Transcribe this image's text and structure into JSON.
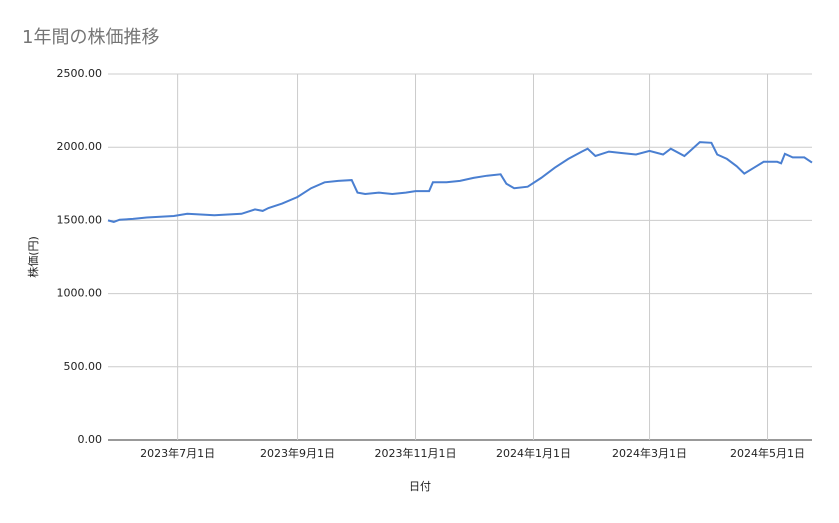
{
  "chart_data": {
    "type": "line",
    "title": "1年間の株価推移",
    "x_label": "日付",
    "y_label": "株価(円)",
    "x": [
      "2023-05-26",
      "2023-05-29",
      "2023-06-01",
      "2023-06-08",
      "2023-06-15",
      "2023-06-22",
      "2023-06-29",
      "2023-07-06",
      "2023-07-13",
      "2023-07-20",
      "2023-07-27",
      "2023-08-03",
      "2023-08-10",
      "2023-08-14",
      "2023-08-17",
      "2023-08-24",
      "2023-09-01",
      "2023-09-08",
      "2023-09-15",
      "2023-09-22",
      "2023-09-29",
      "2023-10-02",
      "2023-10-06",
      "2023-10-13",
      "2023-10-20",
      "2023-10-27",
      "2023-11-01",
      "2023-11-08",
      "2023-11-10",
      "2023-11-17",
      "2023-11-24",
      "2023-12-01",
      "2023-12-08",
      "2023-12-15",
      "2023-12-18",
      "2023-12-22",
      "2023-12-29",
      "2024-01-05",
      "2024-01-12",
      "2024-01-19",
      "2024-01-26",
      "2024-01-29",
      "2024-02-02",
      "2024-02-09",
      "2024-02-16",
      "2024-02-23",
      "2024-03-01",
      "2024-03-08",
      "2024-03-12",
      "2024-03-19",
      "2024-03-22",
      "2024-03-27",
      "2024-04-02",
      "2024-04-05",
      "2024-04-10",
      "2024-04-15",
      "2024-04-19",
      "2024-04-24",
      "2024-04-29",
      "2024-05-06",
      "2024-05-08",
      "2024-05-10",
      "2024-05-14",
      "2024-05-20",
      "2024-05-24"
    ],
    "series": [
      {
        "name": "株価",
        "color": "#4a7fd1",
        "values": [
          1500,
          1490,
          1505,
          1510,
          1520,
          1525,
          1530,
          1545,
          1540,
          1535,
          1540,
          1545,
          1575,
          1565,
          1585,
          1615,
          1660,
          1720,
          1760,
          1770,
          1775,
          1690,
          1680,
          1690,
          1680,
          1690,
          1700,
          1700,
          1760,
          1760,
          1770,
          1790,
          1805,
          1815,
          1750,
          1720,
          1730,
          1790,
          1860,
          1920,
          1970,
          1990,
          1940,
          1970,
          1960,
          1950,
          1975,
          1950,
          1990,
          1940,
          1975,
          2035,
          2030,
          1950,
          1920,
          1870,
          1820,
          1860,
          1900,
          1900,
          1890,
          1955,
          1930,
          1930,
          1895
        ]
      }
    ],
    "xlim": [
      "2023-05-26",
      "2024-05-24"
    ],
    "xticks": [
      {
        "value": "2023-07-01",
        "label": "2023年7月1日"
      },
      {
        "value": "2023-09-01",
        "label": "2023年9月1日"
      },
      {
        "value": "2023-11-01",
        "label": "2023年11月1日"
      },
      {
        "value": "2024-01-01",
        "label": "2024年1月1日"
      },
      {
        "value": "2024-03-01",
        "label": "2024年3月1日"
      },
      {
        "value": "2024-05-01",
        "label": "2024年5月1日"
      }
    ],
    "ylim": [
      0,
      2500
    ],
    "yticks": [
      {
        "value": 0,
        "label": "0.00"
      },
      {
        "value": 500,
        "label": "500.00"
      },
      {
        "value": 1000,
        "label": "1000.00"
      },
      {
        "value": 1500,
        "label": "1500.00"
      },
      {
        "value": 2000,
        "label": "2000.00"
      },
      {
        "value": 2500,
        "label": "2500.00"
      }
    ],
    "grid": true
  }
}
